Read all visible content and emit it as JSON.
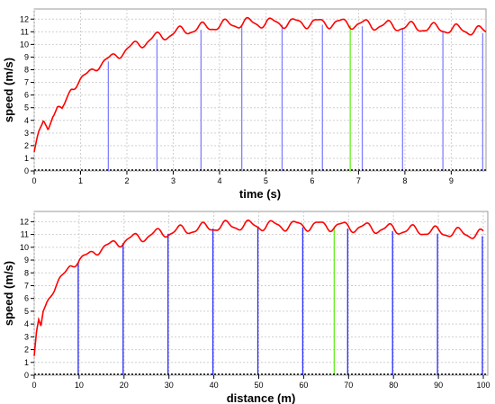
{
  "chart_data": [
    {
      "type": "line",
      "xlabel": "time (s)",
      "ylabel": "speed (m/s)",
      "xlim": [
        0,
        9.75
      ],
      "ylim": [
        0,
        12.8
      ],
      "x_ticks": [
        0,
        1,
        2,
        3,
        4,
        5,
        6,
        7,
        8,
        9
      ],
      "y_ticks": [
        0,
        1,
        2,
        3,
        4,
        5,
        6,
        7,
        8,
        9,
        10,
        11,
        12
      ],
      "grid": true,
      "series": [
        {
          "color": "#ff0000",
          "x": [
            0,
            0.1,
            0.2,
            0.3,
            0.4,
            0.5,
            0.6,
            0.8,
            1.0,
            1.2,
            1.4,
            1.6,
            1.8,
            2.0,
            2.3,
            2.6,
            3.0,
            3.4,
            3.8,
            4.2,
            4.6,
            5.0,
            5.5,
            6.0,
            6.5,
            7.0,
            7.5,
            8.0,
            8.5,
            9.0,
            9.5,
            9.75
          ],
          "y": [
            1.5,
            3.0,
            4.0,
            3.2,
            4.5,
            5.0,
            4.8,
            6.5,
            7.2,
            7.8,
            8.4,
            8.8,
            9.2,
            9.6,
            10.1,
            10.5,
            10.9,
            11.2,
            11.4,
            11.6,
            11.7,
            11.7,
            11.7,
            11.7,
            11.7,
            11.6,
            11.5,
            11.4,
            11.3,
            11.2,
            11.1,
            11.0
          ]
        }
      ],
      "markers": [
        {
          "x": 1.6,
          "color": "#8080ff"
        },
        {
          "x": 2.65,
          "color": "#8080ff"
        },
        {
          "x": 3.6,
          "color": "#8080ff"
        },
        {
          "x": 4.48,
          "color": "#8080ff"
        },
        {
          "x": 5.35,
          "color": "#8080ff"
        },
        {
          "x": 6.22,
          "color": "#8080ff"
        },
        {
          "x": 6.82,
          "color": "#66ee22"
        },
        {
          "x": 7.08,
          "color": "#8080ff"
        },
        {
          "x": 7.95,
          "color": "#8080ff"
        },
        {
          "x": 8.82,
          "color": "#8080ff"
        },
        {
          "x": 9.68,
          "color": "#8080ff"
        }
      ]
    },
    {
      "type": "line",
      "xlabel": "distance (m)",
      "ylabel": "speed (m/s)",
      "xlim": [
        0,
        101
      ],
      "ylim": [
        0,
        12.8
      ],
      "x_ticks": [
        0,
        10,
        20,
        30,
        40,
        50,
        60,
        70,
        80,
        90,
        100
      ],
      "y_ticks": [
        0,
        1,
        2,
        3,
        4,
        5,
        6,
        7,
        8,
        9,
        10,
        11,
        12
      ],
      "grid": true,
      "series": [
        {
          "color": "#ff0000",
          "x": [
            0,
            0.5,
            1,
            1.5,
            2,
            3,
            4,
            5,
            6,
            8,
            10,
            12,
            15,
            18,
            21,
            25,
            30,
            35,
            40,
            45,
            50,
            55,
            60,
            65,
            70,
            75,
            80,
            85,
            90,
            95,
            100
          ],
          "y": [
            1.5,
            3.2,
            4.2,
            3.8,
            5.0,
            5.8,
            6.5,
            7.1,
            7.6,
            8.5,
            9.0,
            9.4,
            9.9,
            10.3,
            10.6,
            10.9,
            11.2,
            11.4,
            11.6,
            11.7,
            11.7,
            11.7,
            11.7,
            11.7,
            11.6,
            11.5,
            11.4,
            11.3,
            11.2,
            11.1,
            11.0
          ]
        }
      ],
      "markers": [
        {
          "x": 9.8,
          "color": "#2a2aff"
        },
        {
          "x": 19.8,
          "color": "#2a2aff"
        },
        {
          "x": 29.8,
          "color": "#2a2aff"
        },
        {
          "x": 39.8,
          "color": "#2a2aff"
        },
        {
          "x": 49.8,
          "color": "#2a2aff"
        },
        {
          "x": 59.8,
          "color": "#2a2aff"
        },
        {
          "x": 66.8,
          "color": "#66ee22"
        },
        {
          "x": 69.8,
          "color": "#2a2aff"
        },
        {
          "x": 79.8,
          "color": "#2a2aff"
        },
        {
          "x": 89.8,
          "color": "#2a2aff"
        },
        {
          "x": 99.8,
          "color": "#2a2aff"
        }
      ]
    }
  ]
}
